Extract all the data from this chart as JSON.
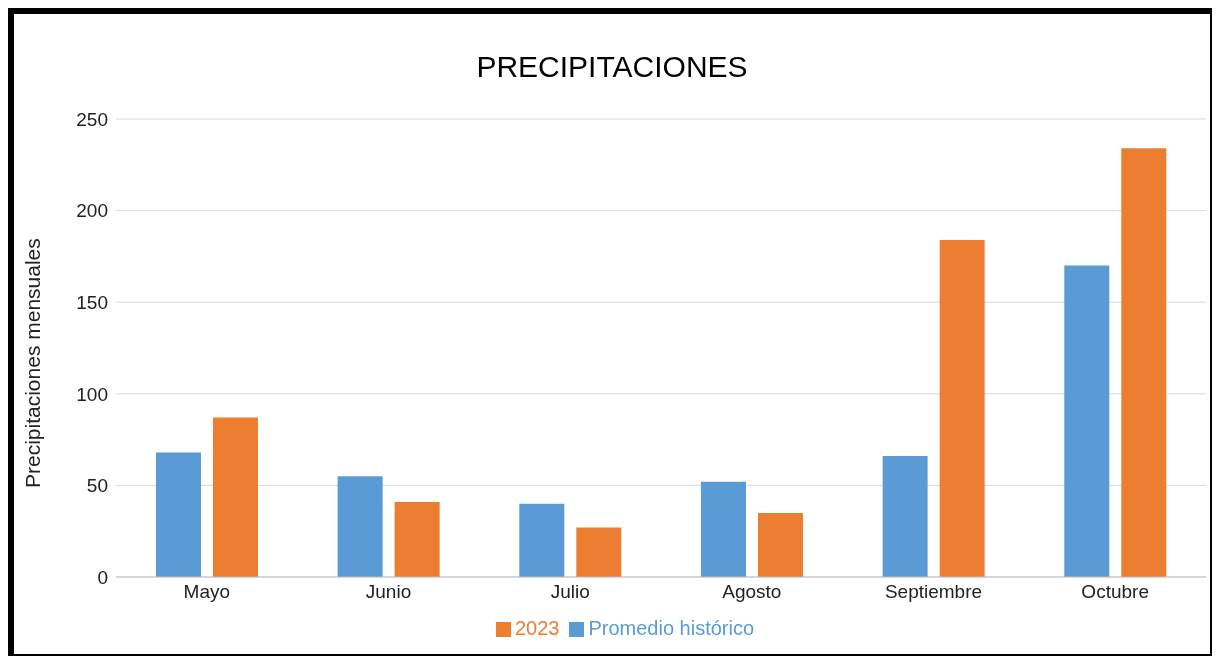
{
  "chart_data": {
    "type": "bar",
    "title": "PRECIPITACIONES",
    "ylabel": "Precipitaciones mensuales",
    "categories": [
      "Mayo",
      "Junio",
      "Julio",
      "Agosto",
      "Septiembre",
      "Octubre"
    ],
    "series": [
      {
        "name": "Promedio histórico",
        "color": "#5b9bd5",
        "values": [
          68,
          55,
          40,
          52,
          66,
          170
        ]
      },
      {
        "name": "2023",
        "color": "#ed7d31",
        "values": [
          87,
          41,
          27,
          35,
          184,
          234
        ]
      }
    ],
    "ylim": [
      0,
      250
    ],
    "yticks": [
      0,
      50,
      100,
      150,
      200,
      250
    ],
    "grid": "y",
    "legend": "bottom"
  }
}
